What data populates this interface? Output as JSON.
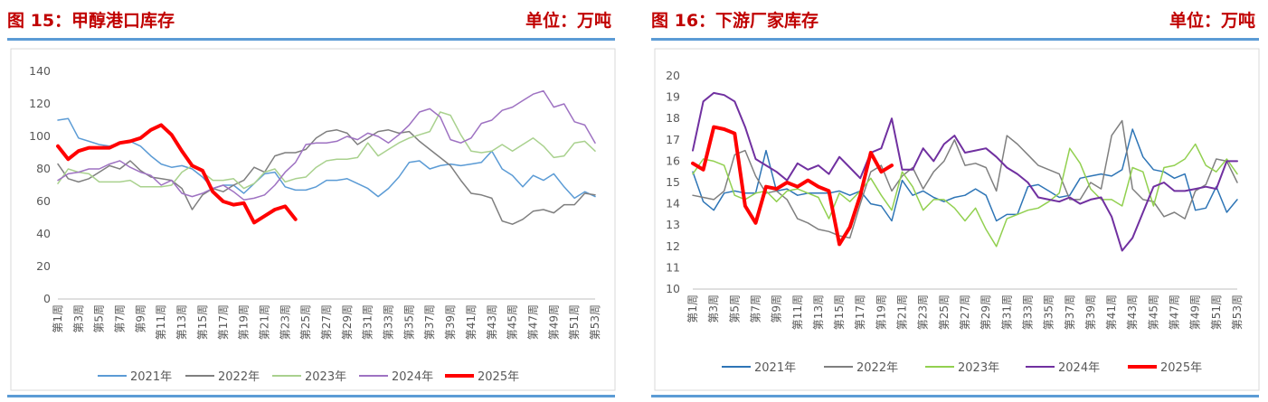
{
  "chart_data": [
    {
      "type": "line",
      "title_text": "图 15：甲醇港口库存",
      "unit_text": "单位：万吨",
      "ylim": [
        0,
        140
      ],
      "yticks": [
        "0",
        "20",
        "40",
        "60",
        "80",
        "100",
        "120",
        "140"
      ],
      "x_tick_labels": [
        "第1周",
        "第3周",
        "第5周",
        "第7周",
        "第9周",
        "第11周",
        "第13周",
        "第15周",
        "第17周",
        "第19周",
        "第21周",
        "第23周",
        "第25周",
        "第27周",
        "第29周",
        "第31周",
        "第33周",
        "第35周",
        "第37周",
        "第39周",
        "第41周",
        "第43周",
        "第45周",
        "第47周",
        "第49周",
        "第51周",
        "第53周"
      ],
      "n_weeks": 53,
      "series": [
        {
          "name": "2021年",
          "color": "#5b9bd5",
          "width": 1.5,
          "values": [
            110,
            111,
            99,
            97,
            95,
            94,
            96,
            97,
            94,
            88,
            83,
            81,
            82,
            80,
            75,
            68,
            70,
            70,
            65,
            71,
            77,
            78,
            69,
            67,
            67,
            69,
            73,
            73,
            74,
            71,
            68,
            63,
            68,
            75,
            84,
            85,
            80,
            82,
            83,
            82,
            83,
            84,
            91,
            80,
            76,
            69,
            76,
            73,
            77,
            69,
            62,
            66,
            63
          ]
        },
        {
          "name": "2022年",
          "color": "#7f7f7f",
          "width": 1.5,
          "values": [
            83,
            74,
            72,
            74,
            78,
            82,
            80,
            85,
            79,
            75,
            74,
            73,
            68,
            55,
            64,
            68,
            66,
            70,
            73,
            81,
            78,
            88,
            90,
            90,
            92,
            99,
            103,
            104,
            102,
            95,
            99,
            103,
            104,
            102,
            103,
            97,
            92,
            87,
            82,
            73,
            65,
            64,
            62,
            48,
            46,
            49,
            54,
            55,
            53,
            58,
            58,
            65,
            64
          ]
        },
        {
          "name": "2023年",
          "color": "#a9d18e",
          "width": 1.5,
          "values": [
            71,
            80,
            78,
            77,
            72,
            72,
            72,
            73,
            69,
            69,
            69,
            70,
            78,
            82,
            78,
            73,
            73,
            74,
            68,
            71,
            78,
            80,
            72,
            74,
            75,
            81,
            85,
            86,
            86,
            87,
            96,
            88,
            92,
            96,
            99,
            101,
            103,
            115,
            113,
            101,
            91,
            90,
            91,
            95,
            91,
            95,
            99,
            94,
            87,
            88,
            96,
            97,
            91
          ]
        },
        {
          "name": "2024年",
          "color": "#9e72c2",
          "width": 1.5,
          "values": [
            73,
            77,
            78,
            80,
            80,
            83,
            85,
            81,
            78,
            76,
            70,
            73,
            65,
            63,
            65,
            68,
            70,
            66,
            61,
            62,
            64,
            70,
            78,
            84,
            95,
            96,
            96,
            97,
            100,
            98,
            102,
            100,
            96,
            101,
            107,
            115,
            117,
            112,
            98,
            96,
            99,
            108,
            110,
            116,
            118,
            122,
            126,
            128,
            118,
            120,
            109,
            107,
            96
          ]
        },
        {
          "name": "2025年",
          "color": "#ff0000",
          "width": 4,
          "values": [
            94,
            86,
            91,
            93,
            93,
            93,
            96,
            97,
            99,
            104,
            107,
            101,
            91,
            82,
            79,
            66,
            60,
            58,
            59,
            47,
            51,
            55,
            57,
            49
          ]
        }
      ],
      "legend": [
        "2021年",
        "2022年",
        "2023年",
        "2024年",
        "2025年"
      ]
    },
    {
      "type": "line",
      "title_text": "图 16：下游厂家库存",
      "unit_text": "单位：万吨",
      "ylim": [
        10,
        20
      ],
      "yticks": [
        "10",
        "11",
        "12",
        "13",
        "14",
        "15",
        "16",
        "17",
        "18",
        "19",
        "20"
      ],
      "x_tick_labels": [
        "第1周",
        "第3周",
        "第5周",
        "第7周",
        "第9周",
        "第11周",
        "第13周",
        "第15周",
        "第17周",
        "第19周",
        "第21周",
        "第23周",
        "第25周",
        "第27周",
        "第29周",
        "第31周",
        "第33周",
        "第35周",
        "第37周",
        "第39周",
        "第41周",
        "第43周",
        "第45周",
        "第47周",
        "第49周",
        "第51周",
        "第53周"
      ],
      "n_weeks": 53,
      "series": [
        {
          "name": "2021年",
          "color": "#2e75b6",
          "width": 1.5,
          "values": [
            15.5,
            14.1,
            13.7,
            14.5,
            14.6,
            14.5,
            14.5,
            16.5,
            14.6,
            14.7,
            14.4,
            14.5,
            14.5,
            14.5,
            14.6,
            14.4,
            14.6,
            14.0,
            13.9,
            13.2,
            15.1,
            14.4,
            14.6,
            14.3,
            14.1,
            14.3,
            14.4,
            14.7,
            14.4,
            13.2,
            13.5,
            13.5,
            14.8,
            14.9,
            14.6,
            14.3,
            14.4,
            15.2,
            15.3,
            15.4,
            15.3,
            15.6,
            17.5,
            16.2,
            15.6,
            15.5,
            15.2,
            15.4,
            13.7,
            13.8,
            14.8,
            13.6,
            14.2
          ]
        },
        {
          "name": "2022年",
          "color": "#7f7f7f",
          "width": 1.5,
          "values": [
            14.4,
            14.3,
            14.2,
            14.6,
            16.3,
            16.5,
            15.3,
            14.5,
            14.6,
            14.2,
            13.3,
            13.1,
            12.8,
            12.7,
            12.5,
            12.4,
            14.0,
            15.5,
            15.8,
            14.6,
            15.3,
            15.7,
            14.7,
            15.5,
            16.0,
            17.0,
            15.8,
            15.9,
            15.7,
            14.6,
            17.2,
            16.8,
            16.3,
            15.8,
            15.6,
            15.4,
            14.2,
            14.2,
            15.0,
            14.7,
            17.2,
            17.9,
            14.7,
            14.2,
            14.1,
            13.4,
            13.6,
            13.3,
            14.6,
            14.9,
            16.1,
            16.0,
            15.0
          ]
        },
        {
          "name": "2023年",
          "color": "#92d050",
          "width": 1.5,
          "values": [
            15.4,
            16.1,
            16.0,
            15.8,
            14.4,
            14.2,
            14.5,
            14.6,
            14.1,
            14.6,
            14.7,
            14.5,
            14.3,
            13.3,
            14.5,
            14.1,
            14.6,
            15.2,
            14.4,
            13.7,
            15.5,
            14.8,
            13.7,
            14.2,
            14.2,
            13.8,
            13.2,
            13.8,
            12.8,
            12.0,
            13.3,
            13.5,
            13.7,
            13.8,
            14.1,
            14.5,
            16.6,
            15.9,
            14.7,
            14.2,
            14.2,
            13.9,
            15.7,
            15.5,
            13.9,
            15.7,
            15.8,
            16.1,
            16.8,
            15.8,
            15.5,
            16.1,
            15.4
          ]
        },
        {
          "name": "2024年",
          "color": "#7030a0",
          "width": 2,
          "values": [
            16.5,
            18.8,
            19.2,
            19.1,
            18.8,
            17.6,
            16.1,
            15.8,
            15.5,
            15.1,
            15.9,
            15.6,
            15.8,
            15.4,
            16.2,
            15.7,
            15.2,
            16.4,
            16.6,
            18.0,
            15.6,
            15.6,
            16.6,
            16.0,
            16.8,
            17.2,
            16.4,
            16.5,
            16.6,
            16.2,
            15.7,
            15.4,
            15.0,
            14.3,
            14.2,
            14.1,
            14.3,
            14.0,
            14.2,
            14.3,
            13.4,
            11.8,
            12.4,
            13.6,
            14.8,
            15.0,
            14.6,
            14.6,
            14.7,
            14.8,
            14.7,
            16.0,
            16.0
          ]
        },
        {
          "name": "2025年",
          "color": "#ff0000",
          "width": 4,
          "values": [
            15.9,
            15.6,
            17.6,
            17.5,
            17.3,
            13.9,
            13.1,
            14.8,
            14.7,
            15.0,
            14.8,
            15.1,
            14.8,
            14.6,
            12.1,
            12.9,
            14.4,
            16.4,
            15.5,
            15.8
          ]
        }
      ],
      "legend": [
        "2021年",
        "2022年",
        "2023年",
        "2024年",
        "2025年"
      ]
    }
  ]
}
